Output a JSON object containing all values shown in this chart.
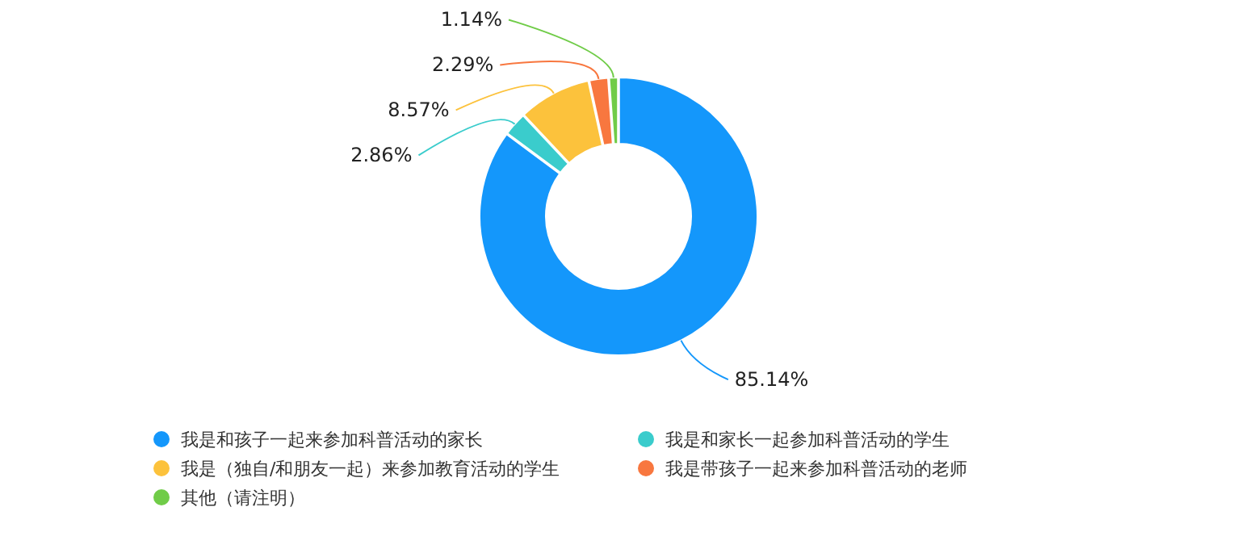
{
  "chart_data": {
    "type": "donut",
    "categories": [
      "我是和孩子一起来参加科普活动的家长",
      "我是和家长一起参加科普活动的学生",
      "我是（独自/和朋友一起）来参加教育活动的学生",
      "我是带孩子一起来参加科普活动的老师",
      "其他（请注明）"
    ],
    "values": [
      85.14,
      2.86,
      8.57,
      2.29,
      1.14
    ],
    "colors": [
      "#1497fb",
      "#3acccc",
      "#fcc23c",
      "#f8773f",
      "#70cc48"
    ],
    "value_labels": [
      "85.14%",
      "2.86%",
      "8.57%",
      "2.29%",
      "1.14%"
    ],
    "legend": "bottom"
  }
}
